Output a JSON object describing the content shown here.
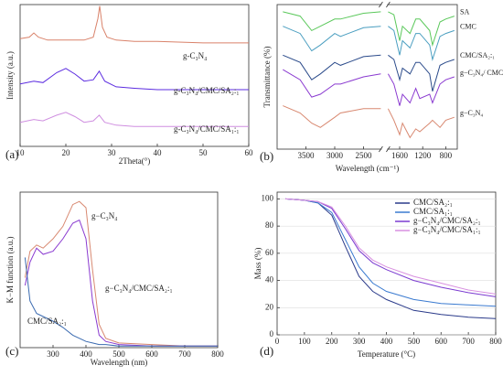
{
  "chart_data": [
    {
      "type": "line",
      "panel_label": "(a)",
      "x_label": "2Theta(°)",
      "y_label": "Intensity (a.u.)",
      "xlim": [
        10,
        60
      ],
      "xticks": [
        10,
        20,
        30,
        40,
        50,
        60
      ],
      "ylim": [
        0,
        100
      ],
      "series": [
        {
          "name": "g-C₃N₄",
          "color": "#d9826a",
          "x": [
            10,
            12,
            13,
            14,
            16,
            20,
            24,
            26,
            27,
            27.4,
            28,
            29,
            31,
            35,
            40,
            50,
            60
          ],
          "values": [
            76,
            77,
            80,
            77,
            75,
            75,
            75,
            77,
            90,
            99,
            84,
            77,
            75,
            74,
            74,
            73,
            73
          ]
        },
        {
          "name": "g-C₃N₄/CMC/SA₂:₁",
          "color": "#5b2be0",
          "x": [
            10,
            13,
            15,
            18,
            20,
            22,
            24,
            26,
            27.3,
            28.5,
            31,
            35,
            40,
            50,
            60
          ],
          "values": [
            44,
            46,
            45,
            52,
            55,
            51,
            46,
            47,
            53,
            46,
            42,
            41,
            40,
            40,
            40
          ]
        },
        {
          "name": "g-C₃N₄/CMC/SA₁:₁",
          "color": "#cf8ee0",
          "x": [
            10,
            13,
            15,
            18,
            20,
            22,
            24,
            26,
            27.3,
            28.5,
            31,
            35,
            40,
            50,
            60
          ],
          "values": [
            17,
            19,
            18,
            22,
            24,
            21,
            17,
            18,
            22,
            17,
            15,
            14,
            14,
            14,
            14
          ]
        }
      ]
    },
    {
      "type": "line",
      "panel_label": "(b)",
      "x_label": "Wavelength (cm⁻¹)",
      "y_label": "Transmittance (%)",
      "xlim": [
        4000,
        600
      ],
      "xbreak": [
        2200,
        1800
      ],
      "xticks": [
        3500,
        3000,
        2500,
        1600,
        1200,
        800
      ],
      "ylim": [
        0,
        100
      ],
      "series": [
        {
          "name": "SA",
          "color": "#5ac85a",
          "x": [
            3900,
            3600,
            3400,
            3250,
            3000,
            2900,
            2500,
            2200,
            1800,
            1700,
            1600,
            1550,
            1420,
            1320,
            1250,
            1080,
            1030,
            900,
            800,
            650
          ],
          "values": [
            95,
            92,
            82,
            85,
            90,
            90,
            94,
            95,
            95,
            93,
            75,
            85,
            80,
            90,
            90,
            82,
            72,
            88,
            90,
            92
          ]
        },
        {
          "name": "CMC",
          "color": "#4a9ec0",
          "x": [
            3900,
            3600,
            3400,
            3250,
            3000,
            2900,
            2500,
            2200,
            1800,
            1700,
            1600,
            1550,
            1420,
            1320,
            1250,
            1080,
            1030,
            900,
            800,
            650
          ],
          "values": [
            85,
            80,
            68,
            72,
            80,
            78,
            84,
            85,
            85,
            82,
            65,
            75,
            70,
            80,
            80,
            72,
            62,
            78,
            80,
            82
          ]
        },
        {
          "name": "CMC/SA₂:₁",
          "color": "#2a4a8a",
          "x": [
            3900,
            3600,
            3400,
            3250,
            3000,
            2900,
            2500,
            2200,
            1800,
            1700,
            1600,
            1550,
            1420,
            1320,
            1250,
            1080,
            1030,
            900,
            800,
            650
          ],
          "values": [
            65,
            60,
            48,
            52,
            60,
            58,
            64,
            65,
            65,
            62,
            48,
            56,
            52,
            60,
            60,
            52,
            40,
            58,
            60,
            62
          ]
        },
        {
          "name": "g−C₃N₄/ CMC/SA₂:₁",
          "color": "#8a3ad0",
          "x": [
            3900,
            3600,
            3400,
            3250,
            3000,
            2900,
            2500,
            2200,
            1800,
            1700,
            1600,
            1550,
            1420,
            1320,
            1250,
            1080,
            1030,
            900,
            800,
            650
          ],
          "values": [
            55,
            48,
            36,
            38,
            45,
            45,
            50,
            52,
            52,
            45,
            30,
            38,
            32,
            42,
            35,
            38,
            32,
            45,
            48,
            50
          ]
        },
        {
          "name": "g−C₃N₄",
          "color": "#d88870",
          "x": [
            3900,
            3600,
            3400,
            3250,
            3000,
            2900,
            2500,
            2200,
            1800,
            1700,
            1600,
            1550,
            1420,
            1320,
            1250,
            1080,
            1030,
            900,
            800,
            650
          ],
          "values": [
            30,
            25,
            18,
            15,
            22,
            25,
            28,
            28,
            28,
            20,
            10,
            18,
            8,
            14,
            12,
            18,
            20,
            15,
            20,
            22
          ]
        }
      ]
    },
    {
      "type": "line",
      "panel_label": "(c)",
      "x_label": "Wavelength (nm)",
      "y_label": "K−M function (a.u.)",
      "xlim": [
        200,
        800
      ],
      "xticks": [
        300,
        400,
        500,
        600,
        700,
        800
      ],
      "ylim": [
        0,
        100
      ],
      "series": [
        {
          "name": "g−C₃N₄",
          "color": "#d88870",
          "x": [
            215,
            230,
            250,
            270,
            300,
            330,
            360,
            380,
            400,
            420,
            440,
            460,
            500,
            600,
            700,
            800
          ],
          "values": [
            45,
            62,
            66,
            64,
            70,
            78,
            92,
            94,
            90,
            50,
            15,
            6,
            3,
            2,
            1,
            1
          ]
        },
        {
          "name": "g−C₃N₄/CMC/SA₂:₁",
          "color": "#8a3ad0",
          "x": [
            215,
            230,
            250,
            270,
            300,
            330,
            360,
            380,
            400,
            420,
            440,
            460,
            500,
            600,
            700,
            800
          ],
          "values": [
            40,
            55,
            64,
            60,
            62,
            70,
            80,
            82,
            70,
            30,
            8,
            4,
            2,
            1,
            1,
            1
          ]
        },
        {
          "name": "CMC/SA₂:₁",
          "color": "#3a6ab0",
          "x": [
            215,
            230,
            250,
            270,
            300,
            330,
            360,
            380,
            400,
            420,
            440,
            460,
            500,
            600,
            700,
            800
          ],
          "values": [
            58,
            30,
            22,
            20,
            17,
            13,
            8,
            6,
            4,
            3,
            2,
            2,
            1,
            1,
            1,
            1
          ]
        }
      ]
    },
    {
      "type": "line",
      "panel_label": "(d)",
      "x_label": "Temperature (°C)",
      "y_label": "Mass (%)",
      "xlim": [
        0,
        800
      ],
      "xticks": [
        0,
        100,
        200,
        300,
        400,
        500,
        600,
        700,
        800
      ],
      "ylim": [
        0,
        105
      ],
      "yticks": [
        0,
        20,
        40,
        60,
        80,
        100
      ],
      "grid": true,
      "legend": "upper right",
      "series": [
        {
          "name": "CMC/SA₂:₁",
          "color": "#2a3a8a",
          "x": [
            30,
            100,
            150,
            200,
            250,
            300,
            350,
            400,
            500,
            600,
            700,
            800
          ],
          "values": [
            100,
            99,
            97,
            88,
            65,
            43,
            32,
            26,
            18,
            15,
            13,
            12
          ]
        },
        {
          "name": "CMC/SA₁:₁",
          "color": "#3a7ad0",
          "x": [
            30,
            100,
            150,
            200,
            250,
            300,
            350,
            400,
            500,
            600,
            700,
            800
          ],
          "values": [
            100,
            99,
            97,
            90,
            70,
            50,
            38,
            32,
            26,
            23,
            22,
            21
          ]
        },
        {
          "name": "g−C₃N₄/CMC/SA₂:₁",
          "color": "#7a3ad0",
          "x": [
            30,
            100,
            150,
            200,
            250,
            300,
            350,
            400,
            500,
            600,
            700,
            800
          ],
          "values": [
            100,
            99,
            98,
            93,
            78,
            62,
            53,
            48,
            40,
            35,
            31,
            28
          ]
        },
        {
          "name": "g−C₃N₄/CMC/SA₁:₁",
          "color": "#d890e0",
          "x": [
            30,
            100,
            150,
            200,
            250,
            300,
            350,
            400,
            500,
            600,
            700,
            800
          ],
          "values": [
            100,
            99,
            98,
            94,
            80,
            64,
            55,
            50,
            43,
            38,
            33,
            30
          ]
        }
      ]
    }
  ]
}
